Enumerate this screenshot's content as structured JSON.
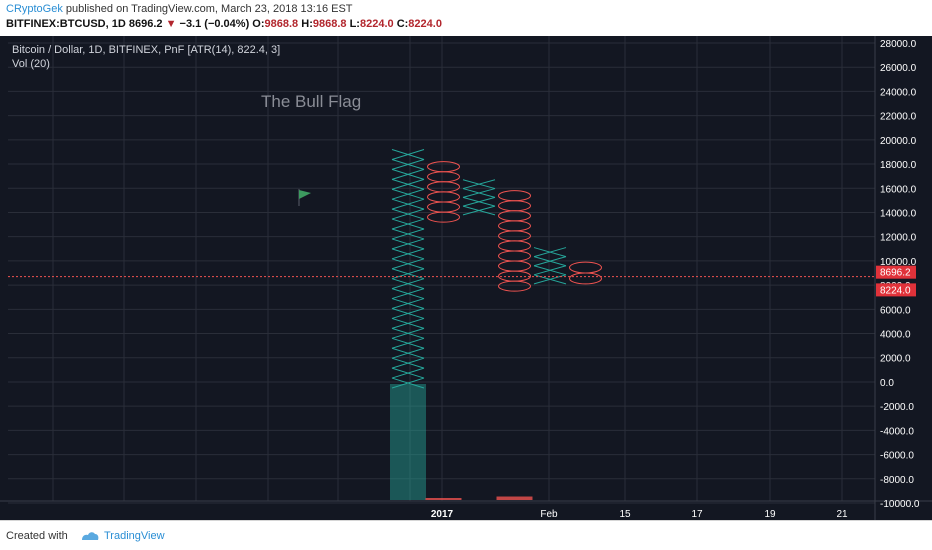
{
  "header": {
    "author": "CRyptoGek",
    "published_text": "published on TradingView.com, March 23, 2018 13:16 EST",
    "symbol": "BITFINEX:BTCUSD, 1D",
    "last": "8696.2",
    "change": "−3.1 (−0.04%)",
    "o_label": "O:",
    "o_value": "9868.8",
    "h_label": "H:",
    "h_value": "9868.8",
    "l_label": "L:",
    "l_value": "8224.0",
    "c_label": "C:",
    "c_value": "8224.0",
    "colors": {
      "author": "#2a8ed4",
      "down": "#b2262d"
    }
  },
  "legend": {
    "line1": "Bitcoin / Dollar, 1D, BITFINEX, PnF [ATR(14), 822.4, 3]",
    "line2": "Vol (20)"
  },
  "annotation": {
    "text": "The Bull Flag",
    "icon": "green-flag-icon"
  },
  "price_tags": [
    {
      "value": "8696.2",
      "color": "#e0323a"
    },
    {
      "value": "8224.0",
      "color": "#e0323a"
    }
  ],
  "footer": {
    "created_with": "Created with",
    "brand": "TradingView"
  },
  "chart_data": {
    "type": "point-and-figure",
    "box_size": 822.4,
    "reversal": 3,
    "ylim": [
      -10000,
      28000
    ],
    "y_ticks": [
      "28000.0",
      "26000.0",
      "24000.0",
      "22000.0",
      "20000.0",
      "18000.0",
      "16000.0",
      "14000.0",
      "12000.0",
      "10000.0",
      "8000.0",
      "6000.0",
      "4000.0",
      "2000.0",
      "0.0",
      "-2000.0",
      "-4000.0",
      "-6000.0",
      "-8000.0",
      "-10000.0"
    ],
    "x_ticks": [
      "2017",
      "Feb",
      "15",
      "17",
      "19",
      "21"
    ],
    "columns": [
      {
        "kind": "X",
        "low": -500,
        "high": 19200
      },
      {
        "kind": "O",
        "high": 18200,
        "low": 13200
      },
      {
        "kind": "X",
        "low": 13800,
        "high": 16700
      },
      {
        "kind": "O",
        "high": 15800,
        "low": 7500
      },
      {
        "kind": "X",
        "low": 8100,
        "high": 11100
      },
      {
        "kind": "O",
        "high": 9900,
        "low": 8100
      }
    ],
    "volume": [
      {
        "column": 0,
        "value": 1.0,
        "color": "#26a69a"
      },
      {
        "column": 1,
        "value": 0.01,
        "color": "#ef5350"
      },
      {
        "column": 3,
        "value": 0.03,
        "color": "#ef5350"
      }
    ],
    "last_price": 8696.2,
    "colors": {
      "x": "#26a69a",
      "o": "#ef5350",
      "grid": "#2a2e39",
      "axis_text": "#ffffff",
      "price_line": "#ef5350"
    }
  }
}
